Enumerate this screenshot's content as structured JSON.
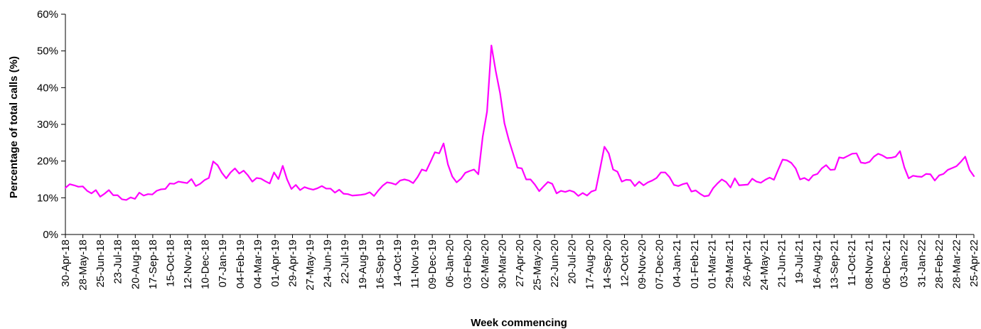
{
  "chart_data": {
    "type": "line",
    "xlabel": "Week commencing",
    "ylabel": "Percentage of total calls (%)",
    "ylim": [
      0,
      60
    ],
    "yticks": [
      "0%",
      "10%",
      "20%",
      "30%",
      "40%",
      "50%",
      "60%"
    ],
    "ytick_values": [
      0,
      10,
      20,
      30,
      40,
      50,
      60
    ],
    "grid": false,
    "legend": "none",
    "line_color": "#ff00ff",
    "xtick_labels": [
      "30-Apr-18",
      "28-May-18",
      "25-Jun-18",
      "23-Jul-18",
      "20-Aug-18",
      "17-Sep-18",
      "15-Oct-18",
      "12-Nov-18",
      "10-Dec-18",
      "07-Jan-19",
      "04-Feb-19",
      "04-Mar-19",
      "01-Apr-19",
      "29-Apr-19",
      "27-May-19",
      "24-Jun-19",
      "22-Jul-19",
      "19-Aug-19",
      "16-Sep-19",
      "14-Oct-19",
      "11-Nov-19",
      "09-Dec-19",
      "06-Jan-20",
      "03-Feb-20",
      "02-Mar-20",
      "30-Mar-20",
      "27-Apr-20",
      "25-May-20",
      "22-Jun-20",
      "20-Jul-20",
      "17-Aug-20",
      "14-Sep-20",
      "12-Oct-20",
      "09-Nov-20",
      "07-Dec-20",
      "04-Jan-21",
      "01-Feb-21",
      "01-Mar-21",
      "29-Mar-21",
      "26-Apr-21",
      "24-May-21",
      "21-Jun-21",
      "19-Jul-21",
      "16-Aug-21",
      "13-Sep-21",
      "11-Oct-21",
      "08-Nov-21",
      "06-Dec-21",
      "03-Jan-22",
      "31-Jan-22",
      "28-Feb-22",
      "28-Mar-22",
      "25-Apr-22"
    ],
    "series": [
      {
        "values": [
          12.7,
          13.7,
          13.4,
          13.0,
          13.1,
          11.9,
          11.2,
          12.1,
          10.3,
          11.1,
          12.1,
          10.7,
          10.7,
          9.6,
          9.4,
          10.1,
          9.7,
          11.4,
          10.6,
          11.0,
          10.9,
          11.9,
          12.3,
          12.4,
          13.9,
          13.8,
          14.4,
          14.2,
          14.0,
          15.1,
          13.2,
          13.8,
          14.8,
          15.4,
          19.9,
          18.9,
          16.8,
          15.3,
          16.9,
          18.0,
          16.6,
          17.4,
          16.1,
          14.4,
          15.4,
          15.2,
          14.5,
          13.9,
          16.9,
          15.1,
          18.7,
          15.0,
          12.4,
          13.5,
          12.1,
          12.9,
          12.5,
          12.2,
          12.6,
          13.2,
          12.5,
          12.5,
          11.4,
          12.2,
          11.1,
          11.0,
          10.6,
          10.7,
          10.8,
          11.0,
          11.5,
          10.5,
          12.0,
          13.3,
          14.2,
          14.0,
          13.6,
          14.7,
          15.0,
          14.7,
          14.0,
          15.6,
          17.7,
          17.3,
          19.8,
          22.4,
          22.1,
          24.8,
          19.1,
          15.8,
          14.2,
          15.2,
          16.8,
          17.3,
          17.7,
          16.4,
          26.6,
          33.5,
          51.5,
          44.5,
          38.5,
          30.3,
          25.8,
          22.0,
          18.2,
          18.0,
          15.0,
          15.0,
          13.6,
          11.8,
          13.1,
          14.3,
          13.8,
          11.2,
          11.9,
          11.6,
          12.0,
          11.6,
          10.5,
          11.3,
          10.6,
          11.7,
          12.1,
          17.9,
          23.9,
          22.1,
          17.7,
          17.1,
          14.4,
          14.9,
          14.8,
          13.2,
          14.4,
          13.4,
          14.2,
          14.7,
          15.4,
          16.9,
          16.9,
          15.6,
          13.5,
          13.2,
          13.7,
          14.0,
          11.7,
          12.0,
          11.1,
          10.4,
          10.6,
          12.6,
          13.9,
          15.0,
          14.3,
          12.8,
          15.3,
          13.4,
          13.5,
          13.6,
          15.2,
          14.4,
          14.1,
          14.9,
          15.5,
          14.9,
          17.7,
          20.4,
          20.2,
          19.5,
          18.0,
          15.0,
          15.4,
          14.7,
          16.1,
          16.5,
          18.0,
          18.9,
          17.6,
          17.7,
          21.0,
          20.8,
          21.4,
          22.0,
          22.1,
          19.6,
          19.4,
          19.8,
          21.2,
          22.0,
          21.5,
          20.8,
          20.9,
          21.2,
          22.7,
          18.3,
          15.3,
          16.0,
          15.8,
          15.7,
          16.5,
          16.4,
          14.7,
          16.1,
          16.5,
          17.6,
          18.1,
          18.6,
          19.8,
          21.2,
          17.6,
          15.9
        ]
      }
    ]
  }
}
